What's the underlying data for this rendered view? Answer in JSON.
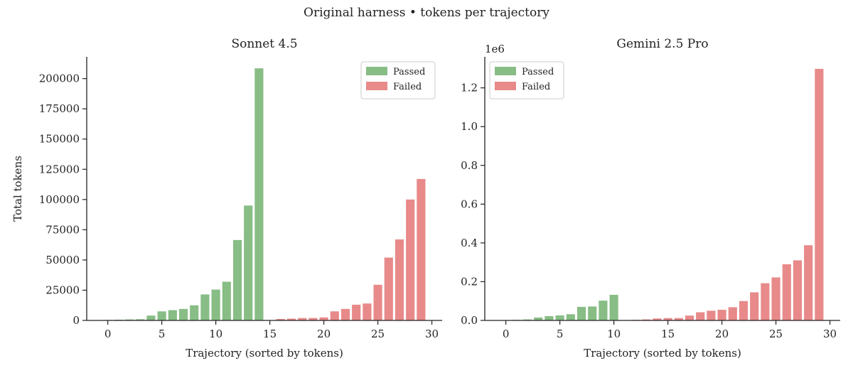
{
  "figure": {
    "suptitle": "Original harness • tokens per trajectory"
  },
  "colors": {
    "passed": "#88bd85",
    "failed": "#e88a8a"
  },
  "chart_data": [
    {
      "type": "bar",
      "title": "Sonnet 4.5",
      "xlabel": "Trajectory (sorted by tokens)",
      "ylabel": "Total tokens",
      "xlim": [
        -1.95,
        30.95
      ],
      "ylim": [
        0,
        218000
      ],
      "offset_text": "",
      "xticks": [
        0,
        5,
        10,
        15,
        20,
        25,
        30
      ],
      "xtick_labels": [
        "0",
        "5",
        "10",
        "15",
        "20",
        "25",
        "30"
      ],
      "yticks": [
        0,
        25000,
        50000,
        75000,
        100000,
        125000,
        150000,
        175000,
        200000
      ],
      "ytick_labels": [
        "0",
        "25000",
        "50000",
        "75000",
        "100000",
        "125000",
        "150000",
        "175000",
        "200000"
      ],
      "legend": {
        "location": "upper right",
        "entries": [
          "Passed",
          "Failed"
        ]
      },
      "series": [
        {
          "name": "Passed",
          "x": [
            0,
            1,
            2,
            3,
            4,
            5,
            6,
            7,
            8,
            9,
            10,
            11,
            12,
            13,
            14
          ],
          "values": [
            400,
            600,
            800,
            1000,
            4000,
            7500,
            8500,
            9500,
            12500,
            21500,
            25500,
            32000,
            66500,
            95000,
            208500
          ]
        },
        {
          "name": "Failed",
          "x": [
            15,
            16,
            17,
            18,
            19,
            20,
            21,
            22,
            23,
            24,
            25,
            26,
            27,
            28,
            29
          ],
          "values": [
            300,
            1200,
            1500,
            2000,
            2000,
            2500,
            7500,
            9500,
            13000,
            14000,
            29500,
            52000,
            67000,
            100000,
            117000
          ]
        }
      ]
    },
    {
      "type": "bar",
      "title": "Gemini 2.5 Pro",
      "xlabel": "Trajectory (sorted by tokens)",
      "ylabel": "",
      "xlim": [
        -1.95,
        30.95
      ],
      "ylim": [
        0,
        1360000
      ],
      "offset_text": "1e6",
      "xticks": [
        0,
        5,
        10,
        15,
        20,
        25,
        30
      ],
      "xtick_labels": [
        "0",
        "5",
        "10",
        "15",
        "20",
        "25",
        "30"
      ],
      "yticks": [
        0,
        200000,
        400000,
        600000,
        800000,
        1000000,
        1200000
      ],
      "ytick_labels": [
        "0.0",
        "0.2",
        "0.4",
        "0.6",
        "0.8",
        "1.0",
        "1.2"
      ],
      "legend": {
        "location": "upper left",
        "entries": [
          "Passed",
          "Failed"
        ]
      },
      "series": [
        {
          "name": "Passed",
          "x": [
            0,
            1,
            2,
            3,
            4,
            5,
            6,
            7,
            8,
            9,
            10
          ],
          "values": [
            2000,
            3000,
            5000,
            15000,
            22000,
            26000,
            32000,
            70000,
            72000,
            102000,
            132000
          ]
        },
        {
          "name": "Failed",
          "x": [
            11,
            12,
            13,
            14,
            15,
            16,
            17,
            18,
            19,
            20,
            21,
            22,
            23,
            24,
            25,
            26,
            27,
            28,
            29
          ],
          "values": [
            2000,
            3000,
            5000,
            10000,
            12000,
            12000,
            25000,
            42000,
            50000,
            55000,
            68000,
            100000,
            145000,
            192000,
            222000,
            290000,
            310000,
            388000,
            1298000
          ]
        }
      ]
    }
  ]
}
